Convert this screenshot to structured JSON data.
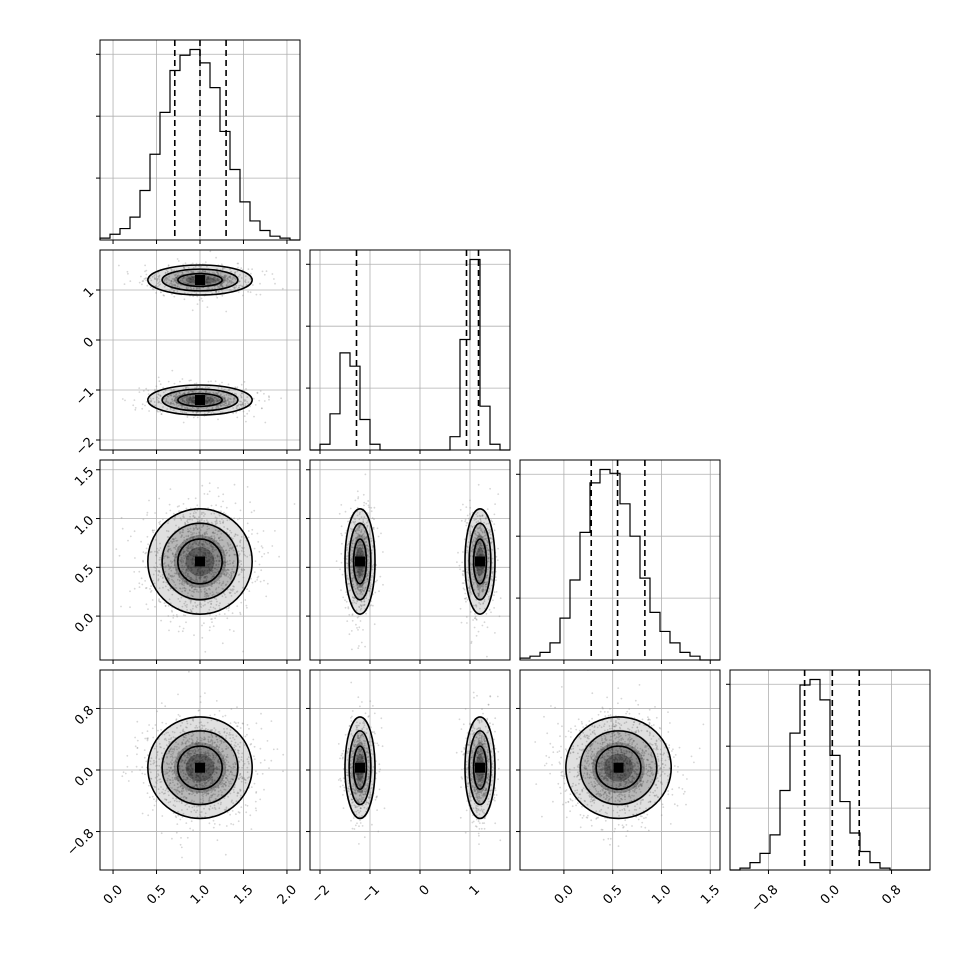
{
  "chart_data": {
    "type": "corner",
    "n_params": 4,
    "parameters": [
      {
        "mean": 1.0,
        "sd": 0.3,
        "range": [
          -0.15,
          2.15
        ],
        "ticks": [
          0.0,
          0.5,
          1.0,
          1.5,
          2.0
        ],
        "tick_labels": [
          "0.0",
          "0.5",
          "1.0",
          "1.5",
          "2.0"
        ],
        "quantiles": [
          0.71,
          1.0,
          1.3
        ]
      },
      {
        "modes": [
          -1.2,
          1.2
        ],
        "sd": 0.15,
        "range": [
          -2.2,
          1.8
        ],
        "ticks": [
          -2,
          -1,
          0,
          1
        ],
        "tick_labels": [
          "−2",
          "−1",
          "0",
          "1"
        ],
        "quantiles": [
          -1.27,
          0.93,
          1.17
        ]
      },
      {
        "mean": 0.56,
        "sd": 0.27,
        "range": [
          -0.45,
          1.6
        ],
        "ticks": [
          0.0,
          0.5,
          1.0,
          1.5
        ],
        "tick_labels": [
          "0.0",
          "0.5",
          "1.0",
          "1.5"
        ],
        "quantiles": [
          0.28,
          0.55,
          0.83
        ]
      },
      {
        "mean": 0.03,
        "sd": 0.33,
        "range": [
          -1.3,
          1.3
        ],
        "ticks": [
          -0.8,
          0.0,
          0.8
        ],
        "tick_labels": [
          "−0.8",
          "0.0",
          "0.8"
        ],
        "quantiles": [
          -0.33,
          0.03,
          0.38
        ]
      }
    ],
    "histograms": [
      {
        "bins": 20,
        "counts": [
          0.01,
          0.03,
          0.06,
          0.12,
          0.26,
          0.45,
          0.67,
          0.89,
          0.97,
          1.0,
          0.93,
          0.8,
          0.57,
          0.37,
          0.2,
          0.1,
          0.05,
          0.02,
          0.01,
          0.0
        ]
      },
      {
        "bins": 20,
        "counts": [
          0.0,
          0.03,
          0.19,
          0.51,
          0.44,
          0.16,
          0.03,
          0.0,
          0.0,
          0.0,
          0.0,
          0.0,
          0.0,
          0.0,
          0.07,
          0.58,
          1.0,
          0.23,
          0.03,
          0.0
        ]
      },
      {
        "bins": 20,
        "counts": [
          0.01,
          0.02,
          0.04,
          0.09,
          0.22,
          0.42,
          0.67,
          0.93,
          1.0,
          0.98,
          0.82,
          0.65,
          0.43,
          0.25,
          0.15,
          0.09,
          0.04,
          0.02,
          0.0,
          0.0
        ]
      },
      {
        "bins": 20,
        "counts": [
          0.0,
          0.01,
          0.04,
          0.09,
          0.19,
          0.43,
          0.74,
          1.0,
          1.03,
          0.92,
          0.62,
          0.37,
          0.2,
          0.1,
          0.04,
          0.01,
          0.0,
          0.0,
          0.0,
          0.0
        ]
      }
    ],
    "grid": true,
    "contour_levels": 3
  }
}
